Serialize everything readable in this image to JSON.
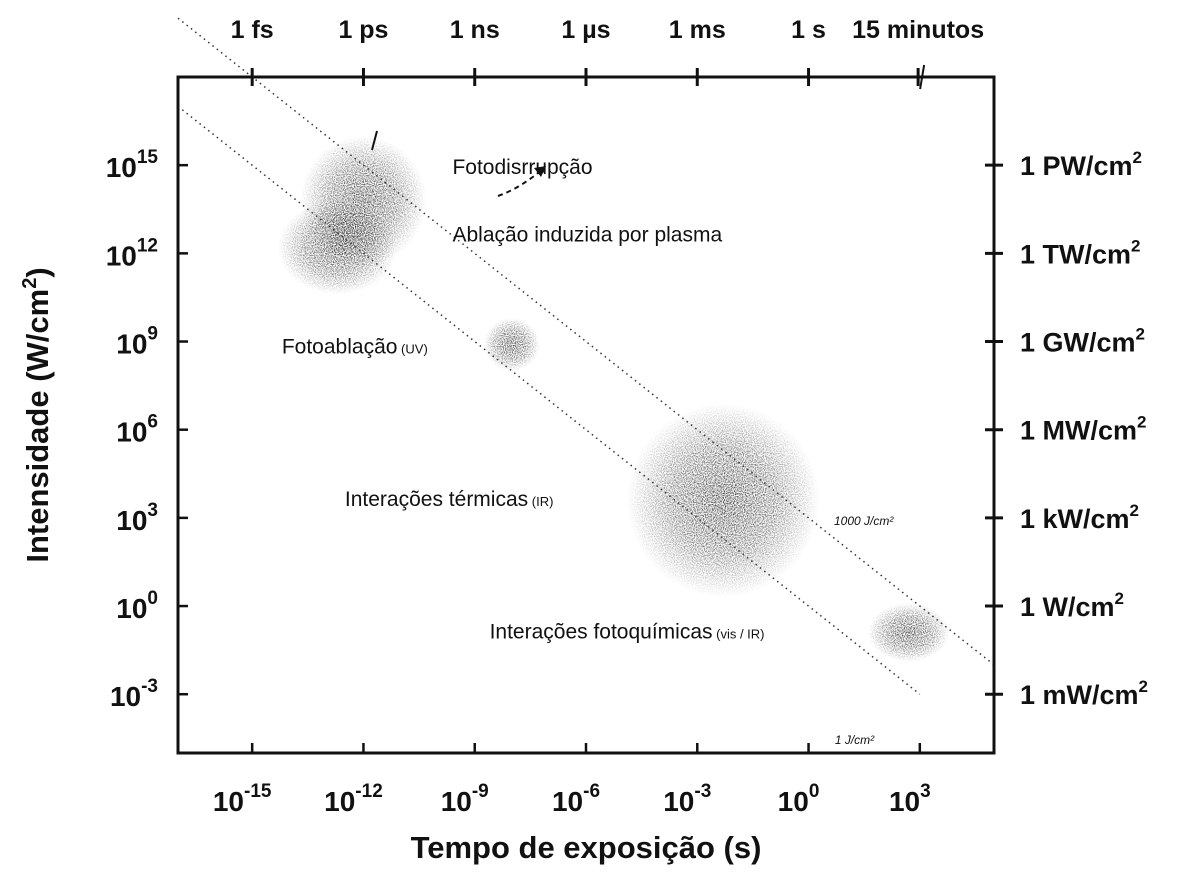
{
  "chart_data": {
    "type": "scatter",
    "x_scale": "log10",
    "y_scale": "log10",
    "xlim": [
      1e-17,
      100000.0
    ],
    "ylim": [
      1e-05,
      1e+18
    ],
    "xlabel": "Tempo de exposição (s)",
    "ylabel_main": "Intensidade (W/cm",
    "ylabel_sup": "2",
    "ylabel_end": ")",
    "x_ticks": [
      {
        "value": 1e-15,
        "base": "10",
        "exp": "-15"
      },
      {
        "value": 1e-12,
        "base": "10",
        "exp": "-12"
      },
      {
        "value": 1e-09,
        "base": "10",
        "exp": "-9"
      },
      {
        "value": 1e-06,
        "base": "10",
        "exp": "-6"
      },
      {
        "value": 0.001,
        "base": "10",
        "exp": "-3"
      },
      {
        "value": 1,
        "base": "10",
        "exp": "0"
      },
      {
        "value": 1000.0,
        "base": "10",
        "exp": "3"
      }
    ],
    "y_ticks": [
      {
        "value": 1000000000000000.0,
        "base": "10",
        "exp": "15"
      },
      {
        "value": 1000000000000.0,
        "base": "10",
        "exp": "12"
      },
      {
        "value": 1000000000.0,
        "base": "10",
        "exp": "9"
      },
      {
        "value": 1000000.0,
        "base": "10",
        "exp": "6"
      },
      {
        "value": 1000.0,
        "base": "10",
        "exp": "3"
      },
      {
        "value": 1,
        "base": "10",
        "exp": "0"
      },
      {
        "value": 0.001,
        "base": "10",
        "exp": "-3"
      }
    ],
    "top_ticks": [
      {
        "value": 1e-15,
        "label": "1 fs"
      },
      {
        "value": 1e-12,
        "label": "1 ps"
      },
      {
        "value": 1e-09,
        "label": "1 ns"
      },
      {
        "value": 1e-06,
        "label": "1 µs"
      },
      {
        "value": 0.001,
        "label": "1 ms"
      },
      {
        "value": 1,
        "label": "1 s"
      },
      {
        "value": 900,
        "label": "15 minutos"
      }
    ],
    "right_ticks": [
      {
        "value": 1000000000000000.0,
        "label": "1 PW/cm",
        "sup": "2"
      },
      {
        "value": 1000000000000.0,
        "label": "1 TW/cm",
        "sup": "2"
      },
      {
        "value": 1000000000.0,
        "label": "1 GW/cm",
        "sup": "2"
      },
      {
        "value": 1000000.0,
        "label": "1 MW/cm",
        "sup": "2"
      },
      {
        "value": 1000.0,
        "label": "1 kW/cm",
        "sup": "2"
      },
      {
        "value": 1,
        "label": "1 W/cm",
        "sup": "2"
      },
      {
        "value": 0.001,
        "label": "1 mW/cm",
        "sup": "2"
      }
    ],
    "fluence_lines": [
      {
        "label": "1000 J/cm²",
        "fluence_J_per_cm2": 1000,
        "x_range": [
          1e-17,
          100000.0
        ]
      },
      {
        "label": "1 J/cm²",
        "fluence_J_per_cm2": 1,
        "x_range": [
          1e-17,
          1000.0
        ]
      }
    ],
    "regions": [
      {
        "name": "fotodisrupcao",
        "x_log_center": -12,
        "y_log_center": 13.8,
        "x_log_half_width": 1.7,
        "y_log_half_width": 2.2
      },
      {
        "name": "ablacao-plasma",
        "x_log_center": -12.7,
        "y_log_center": 12.2,
        "x_log_half_width": 1.6,
        "y_log_half_width": 1.6
      },
      {
        "name": "fotoablacao",
        "x_log_center": -8,
        "y_log_center": 8.9,
        "x_log_half_width": 0.75,
        "y_log_half_width": 0.9
      },
      {
        "name": "termicas",
        "x_log_center": -2.3,
        "y_log_center": 3.6,
        "x_log_half_width": 2.6,
        "y_log_half_width": 3.3
      },
      {
        "name": "fotoquimicas",
        "x_log_center": 2.7,
        "y_log_center": -0.9,
        "x_log_half_width": 1.1,
        "y_log_half_width": 1.0
      }
    ],
    "annotations": [
      {
        "text": "Fotodisrrupção",
        "x_log": -9.6,
        "y_log": 14.7
      },
      {
        "text": "Ablação induzida por plasma",
        "x_log": -9.6,
        "y_log": 12.4
      },
      {
        "text": "Fotoablação",
        "x_log": -14.2,
        "y_log": 8.6,
        "suffix": "(UV)"
      },
      {
        "text": "Interações térmicas",
        "x_log": -12.5,
        "y_log": 3.4,
        "suffix": "(IR)"
      },
      {
        "text": "Interações fotoquímicas",
        "x_log": -8.6,
        "y_log": -1.1,
        "suffix": "(vis / IR)"
      }
    ]
  }
}
